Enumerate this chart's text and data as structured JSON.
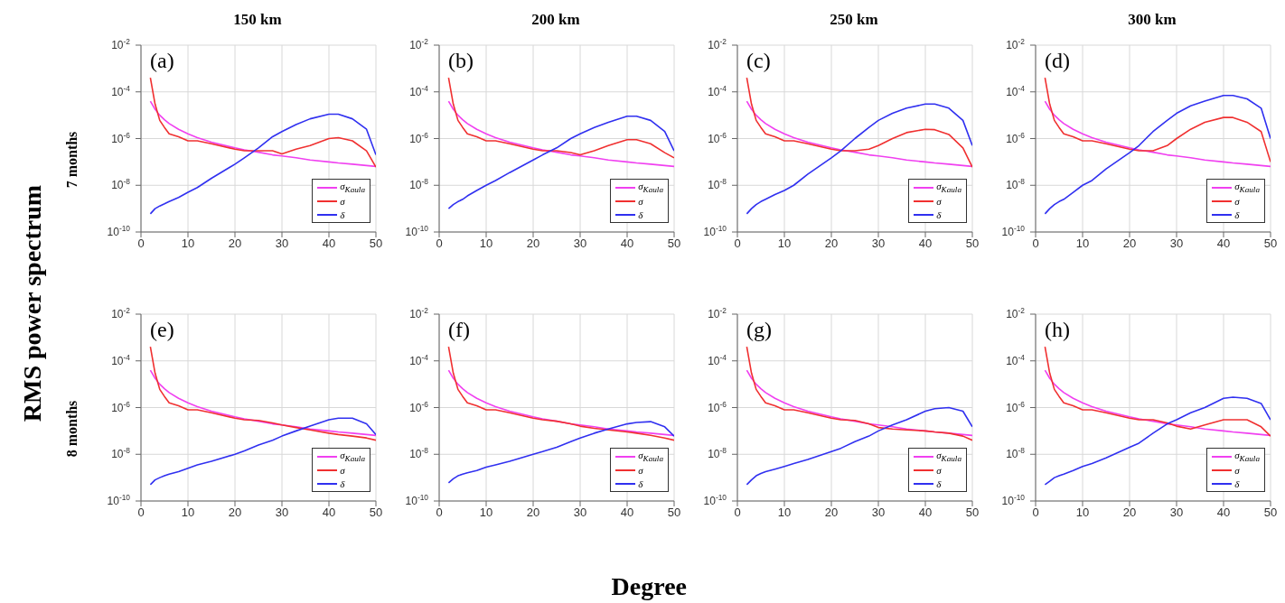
{
  "chart_data": [
    {
      "type": "line",
      "title": "150 km",
      "ylabel": "RMS power spectrum",
      "annotations": [
        "(a)",
        "7 months"
      ],
      "x": [
        2,
        3,
        4,
        5,
        6,
        8,
        10,
        12,
        15,
        20,
        22,
        25,
        28,
        30,
        33,
        36,
        40,
        42,
        45,
        48,
        50
      ],
      "xlim": [
        0,
        50
      ],
      "xticks": [
        0,
        10,
        20,
        30,
        40,
        50
      ],
      "log": true,
      "ylim": [
        1e-10,
        0.01
      ],
      "yticks": [
        {
          "value": 1e-10,
          "label": "10$^{-10}$"
        },
        {
          "value": 1e-08,
          "label": "10$^{-8}$"
        },
        {
          "value": 1e-06,
          "label": "10$^{-6}$"
        },
        {
          "value": 0.0001,
          "label": "10$^{-4}$"
        },
        {
          "value": 0.01,
          "label": "10$^{-2}$"
        }
      ],
      "grid": true,
      "legend": "bottom right",
      "series": [
        {
          "name": "σ$_{Kaula}$",
          "color": "#f040f0",
          "values": [
            4e-05,
            1.8e-05,
            1e-05,
            6.4e-06,
            4.4e-06,
            2.5e-06,
            1.6e-06,
            1.1e-06,
            7e-07,
            4e-07,
            3.3e-07,
            2.6e-07,
            2e-07,
            1.8e-07,
            1.5e-07,
            1.2e-07,
            1e-07,
            9e-08,
            8e-08,
            7e-08,
            6.4e-08
          ]
        },
        {
          "name": "σ",
          "color": "#f03030",
          "values": [
            0.0004,
            3e-05,
            6e-06,
            3e-06,
            1.6e-06,
            1.2e-06,
            8e-07,
            8e-07,
            6e-07,
            3.5e-07,
            3e-07,
            3e-07,
            3e-07,
            2.2e-07,
            3.5e-07,
            5e-07,
            1e-06,
            1.1e-06,
            8e-07,
            3e-07,
            6e-08
          ]
        },
        {
          "name": "δ",
          "color": "#3030f0",
          "values": [
            6e-10,
            1e-09,
            1.3e-09,
            1.6e-09,
            2e-09,
            3e-09,
            5e-09,
            8e-09,
            2e-08,
            8e-08,
            1.5e-07,
            4e-07,
            1.2e-06,
            2e-06,
            4e-06,
            7e-06,
            1.1e-05,
            1.1e-05,
            7e-06,
            2.5e-06,
            2e-07
          ]
        }
      ]
    },
    {
      "type": "line",
      "title": "200 km",
      "annotations": [
        "(b)"
      ],
      "x": [
        2,
        3,
        4,
        5,
        6,
        8,
        10,
        12,
        15,
        20,
        22,
        25,
        28,
        30,
        33,
        36,
        40,
        42,
        45,
        48,
        50
      ],
      "xlim": [
        0,
        50
      ],
      "xticks": [
        0,
        10,
        20,
        30,
        40,
        50
      ],
      "log": true,
      "ylim": [
        1e-10,
        0.01
      ],
      "yticks": [
        {
          "value": 1e-10,
          "label": "10$^{-10}$"
        },
        {
          "value": 1e-08,
          "label": "10$^{-8}$"
        },
        {
          "value": 1e-06,
          "label": "10$^{-6}$"
        },
        {
          "value": 0.0001,
          "label": "10$^{-4}$"
        },
        {
          "value": 0.01,
          "label": "10$^{-2}$"
        }
      ],
      "grid": true,
      "legend": "bottom right",
      "series": [
        {
          "name": "σ$_{Kaula}$",
          "color": "#f040f0",
          "values": [
            4e-05,
            1.8e-05,
            1e-05,
            6.4e-06,
            4.4e-06,
            2.5e-06,
            1.6e-06,
            1.1e-06,
            7e-07,
            4e-07,
            3.3e-07,
            2.6e-07,
            2e-07,
            1.8e-07,
            1.5e-07,
            1.2e-07,
            1e-07,
            9e-08,
            8e-08,
            7e-08,
            6.4e-08
          ]
        },
        {
          "name": "σ",
          "color": "#f03030",
          "values": [
            0.0004,
            3e-05,
            6e-06,
            3e-06,
            1.6e-06,
            1.2e-06,
            8e-07,
            8e-07,
            6e-07,
            3.5e-07,
            3e-07,
            3e-07,
            2.5e-07,
            2e-07,
            3e-07,
            5e-07,
            9e-07,
            9e-07,
            6e-07,
            2.5e-07,
            1.5e-07
          ]
        },
        {
          "name": "δ",
          "color": "#3030f0",
          "values": [
            1e-09,
            1.5e-09,
            2e-09,
            2.5e-09,
            3.5e-09,
            6e-09,
            1e-08,
            1.6e-08,
            3.5e-08,
            1.2e-07,
            2e-07,
            4e-07,
            1e-06,
            1.6e-06,
            3e-06,
            5e-06,
            9e-06,
            9e-06,
            6e-06,
            2e-06,
            3e-07
          ]
        }
      ]
    },
    {
      "type": "line",
      "title": "250 km",
      "annotations": [
        "(c)"
      ],
      "x": [
        2,
        3,
        4,
        5,
        6,
        8,
        10,
        12,
        15,
        20,
        22,
        25,
        28,
        30,
        33,
        36,
        40,
        42,
        45,
        48,
        50
      ],
      "xlim": [
        0,
        50
      ],
      "xticks": [
        0,
        10,
        20,
        30,
        40,
        50
      ],
      "log": true,
      "ylim": [
        1e-10,
        0.01
      ],
      "yticks": [
        {
          "value": 1e-10,
          "label": "10$^{-10}$"
        },
        {
          "value": 1e-08,
          "label": "10$^{-8}$"
        },
        {
          "value": 1e-06,
          "label": "10$^{-6}$"
        },
        {
          "value": 0.0001,
          "label": "10$^{-4}$"
        },
        {
          "value": 0.01,
          "label": "10$^{-2}$"
        }
      ],
      "grid": true,
      "legend": "bottom right",
      "series": [
        {
          "name": "σ$_{Kaula}$",
          "color": "#f040f0",
          "values": [
            4e-05,
            1.8e-05,
            1e-05,
            6.4e-06,
            4.4e-06,
            2.5e-06,
            1.6e-06,
            1.1e-06,
            7e-07,
            4e-07,
            3.3e-07,
            2.6e-07,
            2e-07,
            1.8e-07,
            1.5e-07,
            1.2e-07,
            1e-07,
            9e-08,
            8e-08,
            7e-08,
            6.4e-08
          ]
        },
        {
          "name": "σ",
          "color": "#f03030",
          "values": [
            0.0004,
            3e-05,
            6e-06,
            3e-06,
            1.6e-06,
            1.2e-06,
            8e-07,
            8e-07,
            6e-07,
            3.5e-07,
            3e-07,
            3e-07,
            3.5e-07,
            5e-07,
            1e-06,
            1.8e-06,
            2.5e-06,
            2.4e-06,
            1.5e-06,
            4e-07,
            6e-08
          ]
        },
        {
          "name": "δ",
          "color": "#3030f0",
          "values": [
            6e-10,
            1e-09,
            1.5e-09,
            2e-09,
            2.5e-09,
            4e-09,
            6e-09,
            1e-08,
            3e-08,
            1.5e-07,
            3e-07,
            1e-06,
            3e-06,
            6e-06,
            1.2e-05,
            2e-05,
            3e-05,
            3e-05,
            2e-05,
            6e-06,
            5e-07
          ]
        }
      ]
    },
    {
      "type": "line",
      "title": "300 km",
      "annotations": [
        "(d)"
      ],
      "x": [
        2,
        3,
        4,
        5,
        6,
        8,
        10,
        12,
        15,
        20,
        22,
        25,
        28,
        30,
        33,
        36,
        40,
        42,
        45,
        48,
        50
      ],
      "xlim": [
        0,
        50
      ],
      "xticks": [
        0,
        10,
        20,
        30,
        40,
        50
      ],
      "log": true,
      "ylim": [
        1e-10,
        0.01
      ],
      "yticks": [
        {
          "value": 1e-10,
          "label": "10$^{-10}$"
        },
        {
          "value": 1e-08,
          "label": "10$^{-8}$"
        },
        {
          "value": 1e-06,
          "label": "10$^{-6}$"
        },
        {
          "value": 0.0001,
          "label": "10$^{-4}$"
        },
        {
          "value": 0.01,
          "label": "10$^{-2}$"
        }
      ],
      "grid": true,
      "legend": "bottom right",
      "series": [
        {
          "name": "σ$_{Kaula}$",
          "color": "#f040f0",
          "values": [
            4e-05,
            1.8e-05,
            1e-05,
            6.4e-06,
            4.4e-06,
            2.5e-06,
            1.6e-06,
            1.1e-06,
            7e-07,
            4e-07,
            3.3e-07,
            2.6e-07,
            2e-07,
            1.8e-07,
            1.5e-07,
            1.2e-07,
            1e-07,
            9e-08,
            8e-08,
            7e-08,
            6.4e-08
          ]
        },
        {
          "name": "σ",
          "color": "#f03030",
          "values": [
            0.0004,
            3e-05,
            6e-06,
            3e-06,
            1.6e-06,
            1.2e-06,
            8e-07,
            8e-07,
            6e-07,
            3.5e-07,
            3e-07,
            3e-07,
            5e-07,
            1e-06,
            2.5e-06,
            5e-06,
            8e-06,
            8e-06,
            5e-06,
            2e-06,
            1e-07
          ]
        },
        {
          "name": "δ",
          "color": "#3030f0",
          "values": [
            6e-10,
            1e-09,
            1.5e-09,
            2e-09,
            2.5e-09,
            5e-09,
            1e-08,
            1.6e-08,
            5e-08,
            2.5e-07,
            5e-07,
            2e-06,
            6e-06,
            1.2e-05,
            2.5e-05,
            4e-05,
            7e-05,
            7e-05,
            5e-05,
            2e-05,
            1e-06
          ]
        }
      ]
    },
    {
      "type": "line",
      "annotations": [
        "(e)",
        "8 months"
      ],
      "x": [
        2,
        3,
        4,
        5,
        6,
        8,
        10,
        12,
        15,
        20,
        22,
        25,
        28,
        30,
        33,
        36,
        40,
        42,
        45,
        48,
        50
      ],
      "xlim": [
        0,
        50
      ],
      "xticks": [
        0,
        10,
        20,
        30,
        40,
        50
      ],
      "log": true,
      "ylim": [
        1e-10,
        0.01
      ],
      "yticks": [
        {
          "value": 1e-10,
          "label": "10$^{-10}$"
        },
        {
          "value": 1e-08,
          "label": "10$^{-8}$"
        },
        {
          "value": 1e-06,
          "label": "10$^{-6}$"
        },
        {
          "value": 0.0001,
          "label": "10$^{-4}$"
        },
        {
          "value": 0.01,
          "label": "10$^{-2}$"
        }
      ],
      "grid": true,
      "legend": "bottom right",
      "series": [
        {
          "name": "σ$_{Kaula}$",
          "color": "#f040f0",
          "values": [
            4e-05,
            1.8e-05,
            1e-05,
            6.4e-06,
            4.4e-06,
            2.5e-06,
            1.6e-06,
            1.1e-06,
            7e-07,
            4e-07,
            3.3e-07,
            2.6e-07,
            2e-07,
            1.8e-07,
            1.5e-07,
            1.2e-07,
            1e-07,
            9e-08,
            8e-08,
            7e-08,
            6.4e-08
          ]
        },
        {
          "name": "σ",
          "color": "#f03030",
          "values": [
            0.0004,
            3e-05,
            6e-06,
            3e-06,
            1.6e-06,
            1.2e-06,
            8e-07,
            8e-07,
            6e-07,
            3.5e-07,
            3e-07,
            2.8e-07,
            2.2e-07,
            1.8e-07,
            1.4e-07,
            1.1e-07,
            8e-08,
            7e-08,
            6e-08,
            5e-08,
            4e-08
          ]
        },
        {
          "name": "δ",
          "color": "#3030f0",
          "values": [
            5e-10,
            8e-10,
            1e-09,
            1.2e-09,
            1.4e-09,
            1.8e-09,
            2.5e-09,
            3.5e-09,
            5e-09,
            1e-08,
            1.4e-08,
            2.5e-08,
            4e-08,
            6e-08,
            1e-07,
            1.6e-07,
            3e-07,
            3.5e-07,
            3.5e-07,
            2e-07,
            7e-08
          ]
        }
      ]
    },
    {
      "type": "line",
      "xlabel": "Degree",
      "annotations": [
        "(f)"
      ],
      "x": [
        2,
        3,
        4,
        5,
        6,
        8,
        10,
        12,
        15,
        20,
        22,
        25,
        28,
        30,
        33,
        36,
        40,
        42,
        45,
        48,
        50
      ],
      "xlim": [
        0,
        50
      ],
      "xticks": [
        0,
        10,
        20,
        30,
        40,
        50
      ],
      "log": true,
      "ylim": [
        1e-10,
        0.01
      ],
      "yticks": [
        {
          "value": 1e-10,
          "label": "10$^{-10}$"
        },
        {
          "value": 1e-08,
          "label": "10$^{-8}$"
        },
        {
          "value": 1e-06,
          "label": "10$^{-6}$"
        },
        {
          "value": 0.0001,
          "label": "10$^{-4}$"
        },
        {
          "value": 0.01,
          "label": "10$^{-2}$"
        }
      ],
      "grid": true,
      "legend": "bottom right",
      "series": [
        {
          "name": "σ$_{Kaula}$",
          "color": "#f040f0",
          "values": [
            4e-05,
            1.8e-05,
            1e-05,
            6.4e-06,
            4.4e-06,
            2.5e-06,
            1.6e-06,
            1.1e-06,
            7e-07,
            4e-07,
            3.3e-07,
            2.6e-07,
            2e-07,
            1.8e-07,
            1.5e-07,
            1.2e-07,
            1e-07,
            9e-08,
            8e-08,
            7e-08,
            6.4e-08
          ]
        },
        {
          "name": "σ",
          "color": "#f03030",
          "values": [
            0.0004,
            3e-05,
            6e-06,
            3e-06,
            1.6e-06,
            1.2e-06,
            8e-07,
            8e-07,
            6e-07,
            3.5e-07,
            3e-07,
            2.6e-07,
            2e-07,
            1.6e-07,
            1.3e-07,
            1.1e-07,
            9e-08,
            8e-08,
            6.5e-08,
            5e-08,
            4e-08
          ]
        },
        {
          "name": "δ",
          "color": "#3030f0",
          "values": [
            6e-10,
            9e-10,
            1.2e-09,
            1.4e-09,
            1.6e-09,
            2e-09,
            2.8e-09,
            3.5e-09,
            5e-09,
            1e-08,
            1.3e-08,
            2e-08,
            3.5e-08,
            5e-08,
            8e-08,
            1.2e-07,
            2e-07,
            2.3e-07,
            2.5e-07,
            1.5e-07,
            6e-08
          ]
        }
      ]
    },
    {
      "type": "line",
      "annotations": [
        "(g)"
      ],
      "x": [
        2,
        3,
        4,
        5,
        6,
        8,
        10,
        12,
        15,
        20,
        22,
        25,
        28,
        30,
        33,
        36,
        40,
        42,
        45,
        48,
        50
      ],
      "xlim": [
        0,
        50
      ],
      "xticks": [
        0,
        10,
        20,
        30,
        40,
        50
      ],
      "log": true,
      "ylim": [
        1e-10,
        0.01
      ],
      "yticks": [
        {
          "value": 1e-10,
          "label": "10$^{-10}$"
        },
        {
          "value": 1e-08,
          "label": "10$^{-8}$"
        },
        {
          "value": 1e-06,
          "label": "10$^{-6}$"
        },
        {
          "value": 0.0001,
          "label": "10$^{-4}$"
        },
        {
          "value": 0.01,
          "label": "10$^{-2}$"
        }
      ],
      "grid": true,
      "legend": "bottom right",
      "series": [
        {
          "name": "σ$_{Kaula}$",
          "color": "#f040f0",
          "values": [
            4e-05,
            1.8e-05,
            1e-05,
            6.4e-06,
            4.4e-06,
            2.5e-06,
            1.6e-06,
            1.1e-06,
            7e-07,
            4e-07,
            3.3e-07,
            2.6e-07,
            2e-07,
            1.8e-07,
            1.5e-07,
            1.2e-07,
            1e-07,
            9e-08,
            8e-08,
            7e-08,
            6.4e-08
          ]
        },
        {
          "name": "σ",
          "color": "#f03030",
          "values": [
            0.0004,
            3e-05,
            6e-06,
            3e-06,
            1.6e-06,
            1.2e-06,
            8e-07,
            8e-07,
            6e-07,
            3.5e-07,
            3e-07,
            2.8e-07,
            2e-07,
            1.4e-07,
            1.2e-07,
            1.1e-07,
            1e-07,
            9e-08,
            8e-08,
            6e-08,
            4e-08
          ]
        },
        {
          "name": "δ",
          "color": "#3030f0",
          "values": [
            5e-10,
            8e-10,
            1.2e-09,
            1.5e-09,
            1.8e-09,
            2.3e-09,
            3e-09,
            4e-09,
            6e-09,
            1.3e-08,
            1.8e-08,
            3.5e-08,
            6e-08,
            1e-07,
            1.8e-07,
            3e-07,
            7e-07,
            9e-07,
            1e-06,
            7e-07,
            1.5e-07
          ]
        }
      ]
    },
    {
      "type": "line",
      "annotations": [
        "(h)"
      ],
      "x": [
        2,
        3,
        4,
        5,
        6,
        8,
        10,
        12,
        15,
        20,
        22,
        25,
        28,
        30,
        33,
        36,
        40,
        42,
        45,
        48,
        50
      ],
      "xlim": [
        0,
        50
      ],
      "xticks": [
        0,
        10,
        20,
        30,
        40,
        50
      ],
      "log": true,
      "ylim": [
        1e-10,
        0.01
      ],
      "yticks": [
        {
          "value": 1e-10,
          "label": "10$^{-10}$"
        },
        {
          "value": 1e-08,
          "label": "10$^{-8}$"
        },
        {
          "value": 1e-06,
          "label": "10$^{-6}$"
        },
        {
          "value": 0.0001,
          "label": "10$^{-4}$"
        },
        {
          "value": 0.01,
          "label": "10$^{-2}$"
        }
      ],
      "grid": true,
      "legend": "bottom right",
      "series": [
        {
          "name": "σ$_{Kaula}$",
          "color": "#f040f0",
          "values": [
            4e-05,
            1.8e-05,
            1e-05,
            6.4e-06,
            4.4e-06,
            2.5e-06,
            1.6e-06,
            1.1e-06,
            7e-07,
            4e-07,
            3.3e-07,
            2.6e-07,
            2e-07,
            1.8e-07,
            1.5e-07,
            1.2e-07,
            1e-07,
            9e-08,
            8e-08,
            7e-08,
            6.4e-08
          ]
        },
        {
          "name": "σ",
          "color": "#f03030",
          "values": [
            0.0004,
            3e-05,
            6e-06,
            3e-06,
            1.6e-06,
            1.2e-06,
            8e-07,
            8e-07,
            6e-07,
            3.5e-07,
            3e-07,
            3e-07,
            2.2e-07,
            1.6e-07,
            1.2e-07,
            1.8e-07,
            3e-07,
            3e-07,
            3e-07,
            1.5e-07,
            6e-08
          ]
        },
        {
          "name": "δ",
          "color": "#3030f0",
          "values": [
            5e-10,
            7e-10,
            1e-09,
            1.2e-09,
            1.4e-09,
            2e-09,
            3e-09,
            4e-09,
            7e-09,
            2e-08,
            3e-08,
            8e-08,
            2e-07,
            3e-07,
            6e-07,
            1e-06,
            2.5e-06,
            2.8e-06,
            2.5e-06,
            1.5e-06,
            3e-07
          ]
        }
      ]
    }
  ]
}
